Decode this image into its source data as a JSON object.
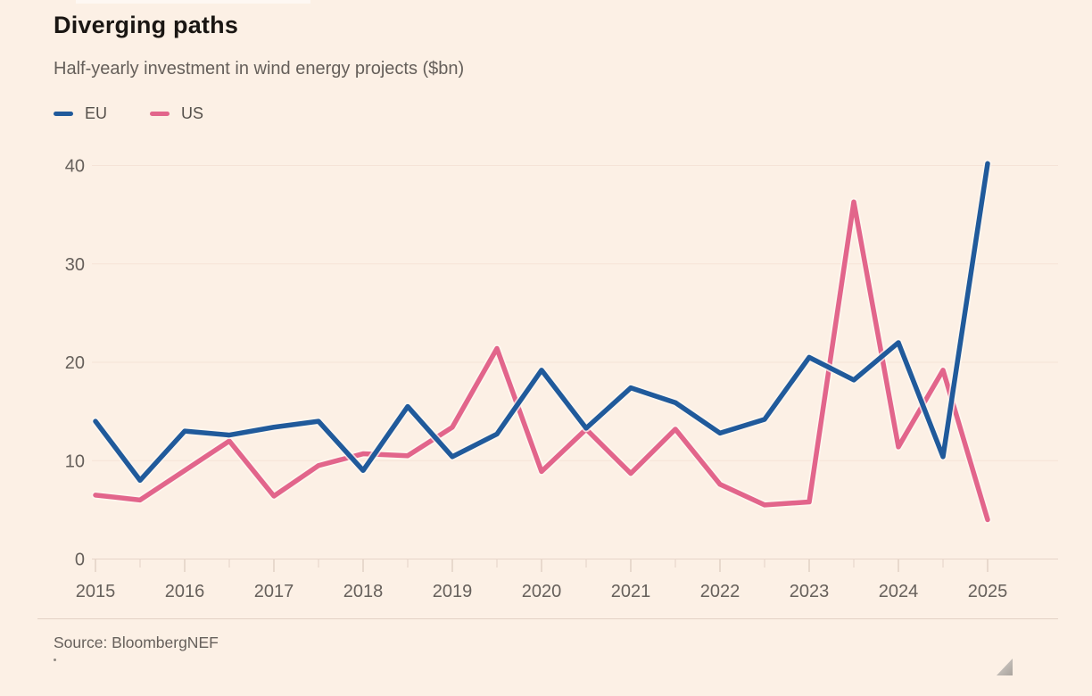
{
  "header": {
    "title": "Diverging paths",
    "subtitle": "Half-yearly investment in wind energy projects ($bn)"
  },
  "footer": {
    "source": "Source: BloombergNEF"
  },
  "colors": {
    "background": "#FCF0E5",
    "eu_line": "#205A9B",
    "us_line": "#E2658B",
    "grid": "#F5E3D7",
    "zero_line": "#E8D5C9",
    "tick_year": "#D5C2B5",
    "tick_half": "#E4D2C6",
    "axis_label": "#66605B",
    "line_halo": "rgba(255,248,241,0.75)"
  },
  "chart_data": {
    "type": "line",
    "title": "Diverging paths",
    "subtitle": "Half-yearly investment in wind energy projects ($bn)",
    "unit": "$bn",
    "x": [
      2015,
      2015.5,
      2016,
      2016.5,
      2017,
      2017.5,
      2018,
      2018.5,
      2019,
      2019.5,
      2020,
      2020.5,
      2021,
      2021.5,
      2022,
      2022.5,
      2023,
      2023.5,
      2024,
      2024.5,
      2025
    ],
    "series": [
      {
        "name": "EU",
        "color": "#205A9B",
        "values": [
          14,
          8,
          13,
          12.6,
          13.4,
          14,
          9,
          15.5,
          10.4,
          12.7,
          19.2,
          13.3,
          17.4,
          15.9,
          12.8,
          14.2,
          20.5,
          18.2,
          22,
          10.4,
          40.2
        ]
      },
      {
        "name": "US",
        "color": "#E2658B",
        "values": [
          6.5,
          6,
          9,
          12,
          6.4,
          9.5,
          10.7,
          10.5,
          13.4,
          21.4,
          8.9,
          13.2,
          8.7,
          13.2,
          7.6,
          5.5,
          5.8,
          36.3,
          11.4,
          19.2,
          4
        ]
      }
    ],
    "xticks": [
      2015,
      2016,
      2017,
      2018,
      2019,
      2020,
      2021,
      2022,
      2023,
      2024,
      2025
    ],
    "yticks": [
      0,
      10,
      20,
      30,
      40
    ],
    "xlim": [
      2015,
      2025
    ],
    "ylim": [
      0,
      40
    ],
    "grid": "horizontal",
    "legend_position": "top-left",
    "source": "Source: BloombergNEF"
  }
}
